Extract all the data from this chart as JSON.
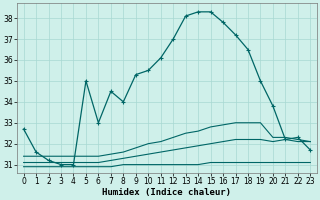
{
  "title": "",
  "xlabel": "Humidex (Indice chaleur)",
  "background_color": "#cff0ea",
  "grid_color": "#a8d8d2",
  "line_color": "#006666",
  "x_ticks": [
    0,
    1,
    2,
    3,
    4,
    5,
    6,
    7,
    8,
    9,
    10,
    11,
    12,
    13,
    14,
    15,
    16,
    17,
    18,
    19,
    20,
    21,
    22,
    23
  ],
  "y_ticks": [
    31,
    32,
    33,
    34,
    35,
    36,
    37,
    38
  ],
  "ylim": [
    30.6,
    38.7
  ],
  "xlim": [
    -0.5,
    23.5
  ],
  "series": [
    {
      "x": [
        0,
        1,
        2,
        3,
        4,
        5,
        6,
        7,
        8,
        9,
        10,
        11,
        12,
        13,
        14,
        15,
        16,
        17,
        18,
        19,
        20,
        21,
        22,
        23
      ],
      "y": [
        32.7,
        31.6,
        31.2,
        31.0,
        31.0,
        35.0,
        33.0,
        34.5,
        34.0,
        35.3,
        35.5,
        36.1,
        37.0,
        38.1,
        38.3,
        38.3,
        37.8,
        37.2,
        36.5,
        35.0,
        33.8,
        32.2,
        32.3,
        31.7
      ],
      "marker": "+",
      "markersize": 3.5,
      "linewidth": 0.9,
      "has_marker": true
    },
    {
      "x": [
        0,
        1,
        2,
        3,
        4,
        5,
        6,
        7,
        8,
        9,
        10,
        11,
        12,
        13,
        14,
        15,
        16,
        17,
        18,
        19,
        20,
        21,
        22,
        23
      ],
      "y": [
        31.1,
        31.1,
        31.1,
        31.1,
        31.1,
        31.1,
        31.1,
        31.2,
        31.3,
        31.4,
        31.5,
        31.6,
        31.7,
        31.8,
        31.9,
        32.0,
        32.1,
        32.2,
        32.2,
        32.2,
        32.1,
        32.2,
        32.1,
        32.1
      ],
      "marker": null,
      "markersize": 0,
      "linewidth": 0.8,
      "has_marker": false
    },
    {
      "x": [
        0,
        1,
        2,
        3,
        4,
        5,
        6,
        7,
        8,
        9,
        10,
        11,
        12,
        13,
        14,
        15,
        16,
        17,
        18,
        19,
        20,
        21,
        22,
        23
      ],
      "y": [
        31.4,
        31.4,
        31.4,
        31.4,
        31.4,
        31.4,
        31.4,
        31.5,
        31.6,
        31.8,
        32.0,
        32.1,
        32.3,
        32.5,
        32.6,
        32.8,
        32.9,
        33.0,
        33.0,
        33.0,
        32.3,
        32.3,
        32.2,
        32.1
      ],
      "marker": null,
      "markersize": 0,
      "linewidth": 0.8,
      "has_marker": false
    },
    {
      "x": [
        0,
        1,
        2,
        3,
        4,
        5,
        6,
        7,
        8,
        9,
        10,
        11,
        12,
        13,
        14,
        15,
        16,
        17,
        18,
        19,
        20,
        21,
        22,
        23
      ],
      "y": [
        30.9,
        30.9,
        30.9,
        30.9,
        30.9,
        30.9,
        30.9,
        30.9,
        31.0,
        31.0,
        31.0,
        31.0,
        31.0,
        31.0,
        31.0,
        31.1,
        31.1,
        31.1,
        31.1,
        31.1,
        31.1,
        31.1,
        31.1,
        31.1
      ],
      "marker": null,
      "markersize": 0,
      "linewidth": 0.8,
      "has_marker": false
    }
  ],
  "marker_x_positions": [
    0,
    1,
    2,
    3,
    4,
    5,
    6,
    7,
    8,
    9,
    10,
    11,
    12,
    13,
    14,
    15,
    16,
    17,
    18,
    19,
    20,
    21,
    22,
    23
  ],
  "small_marker_x": [
    3,
    4,
    5,
    6,
    7,
    9,
    10,
    11,
    12,
    13,
    14,
    15,
    16,
    17,
    18,
    19,
    20,
    21
  ],
  "xlabel_fontsize": 6.5,
  "tick_fontsize": 5.5
}
